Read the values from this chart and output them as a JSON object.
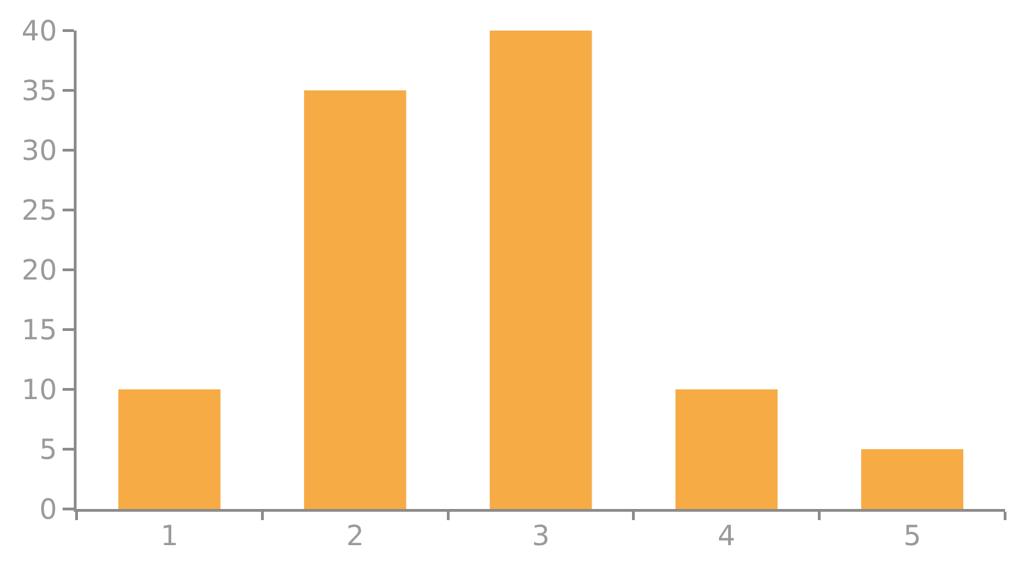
{
  "chart_data": {
    "type": "bar",
    "categories": [
      "1",
      "2",
      "3",
      "4",
      "5"
    ],
    "values": [
      10,
      35,
      40,
      10,
      5
    ],
    "color": "#f6ab45",
    "ylim": [
      0,
      40
    ],
    "yticks": [
      0,
      5,
      10,
      15,
      20,
      25,
      30,
      35,
      40
    ]
  }
}
